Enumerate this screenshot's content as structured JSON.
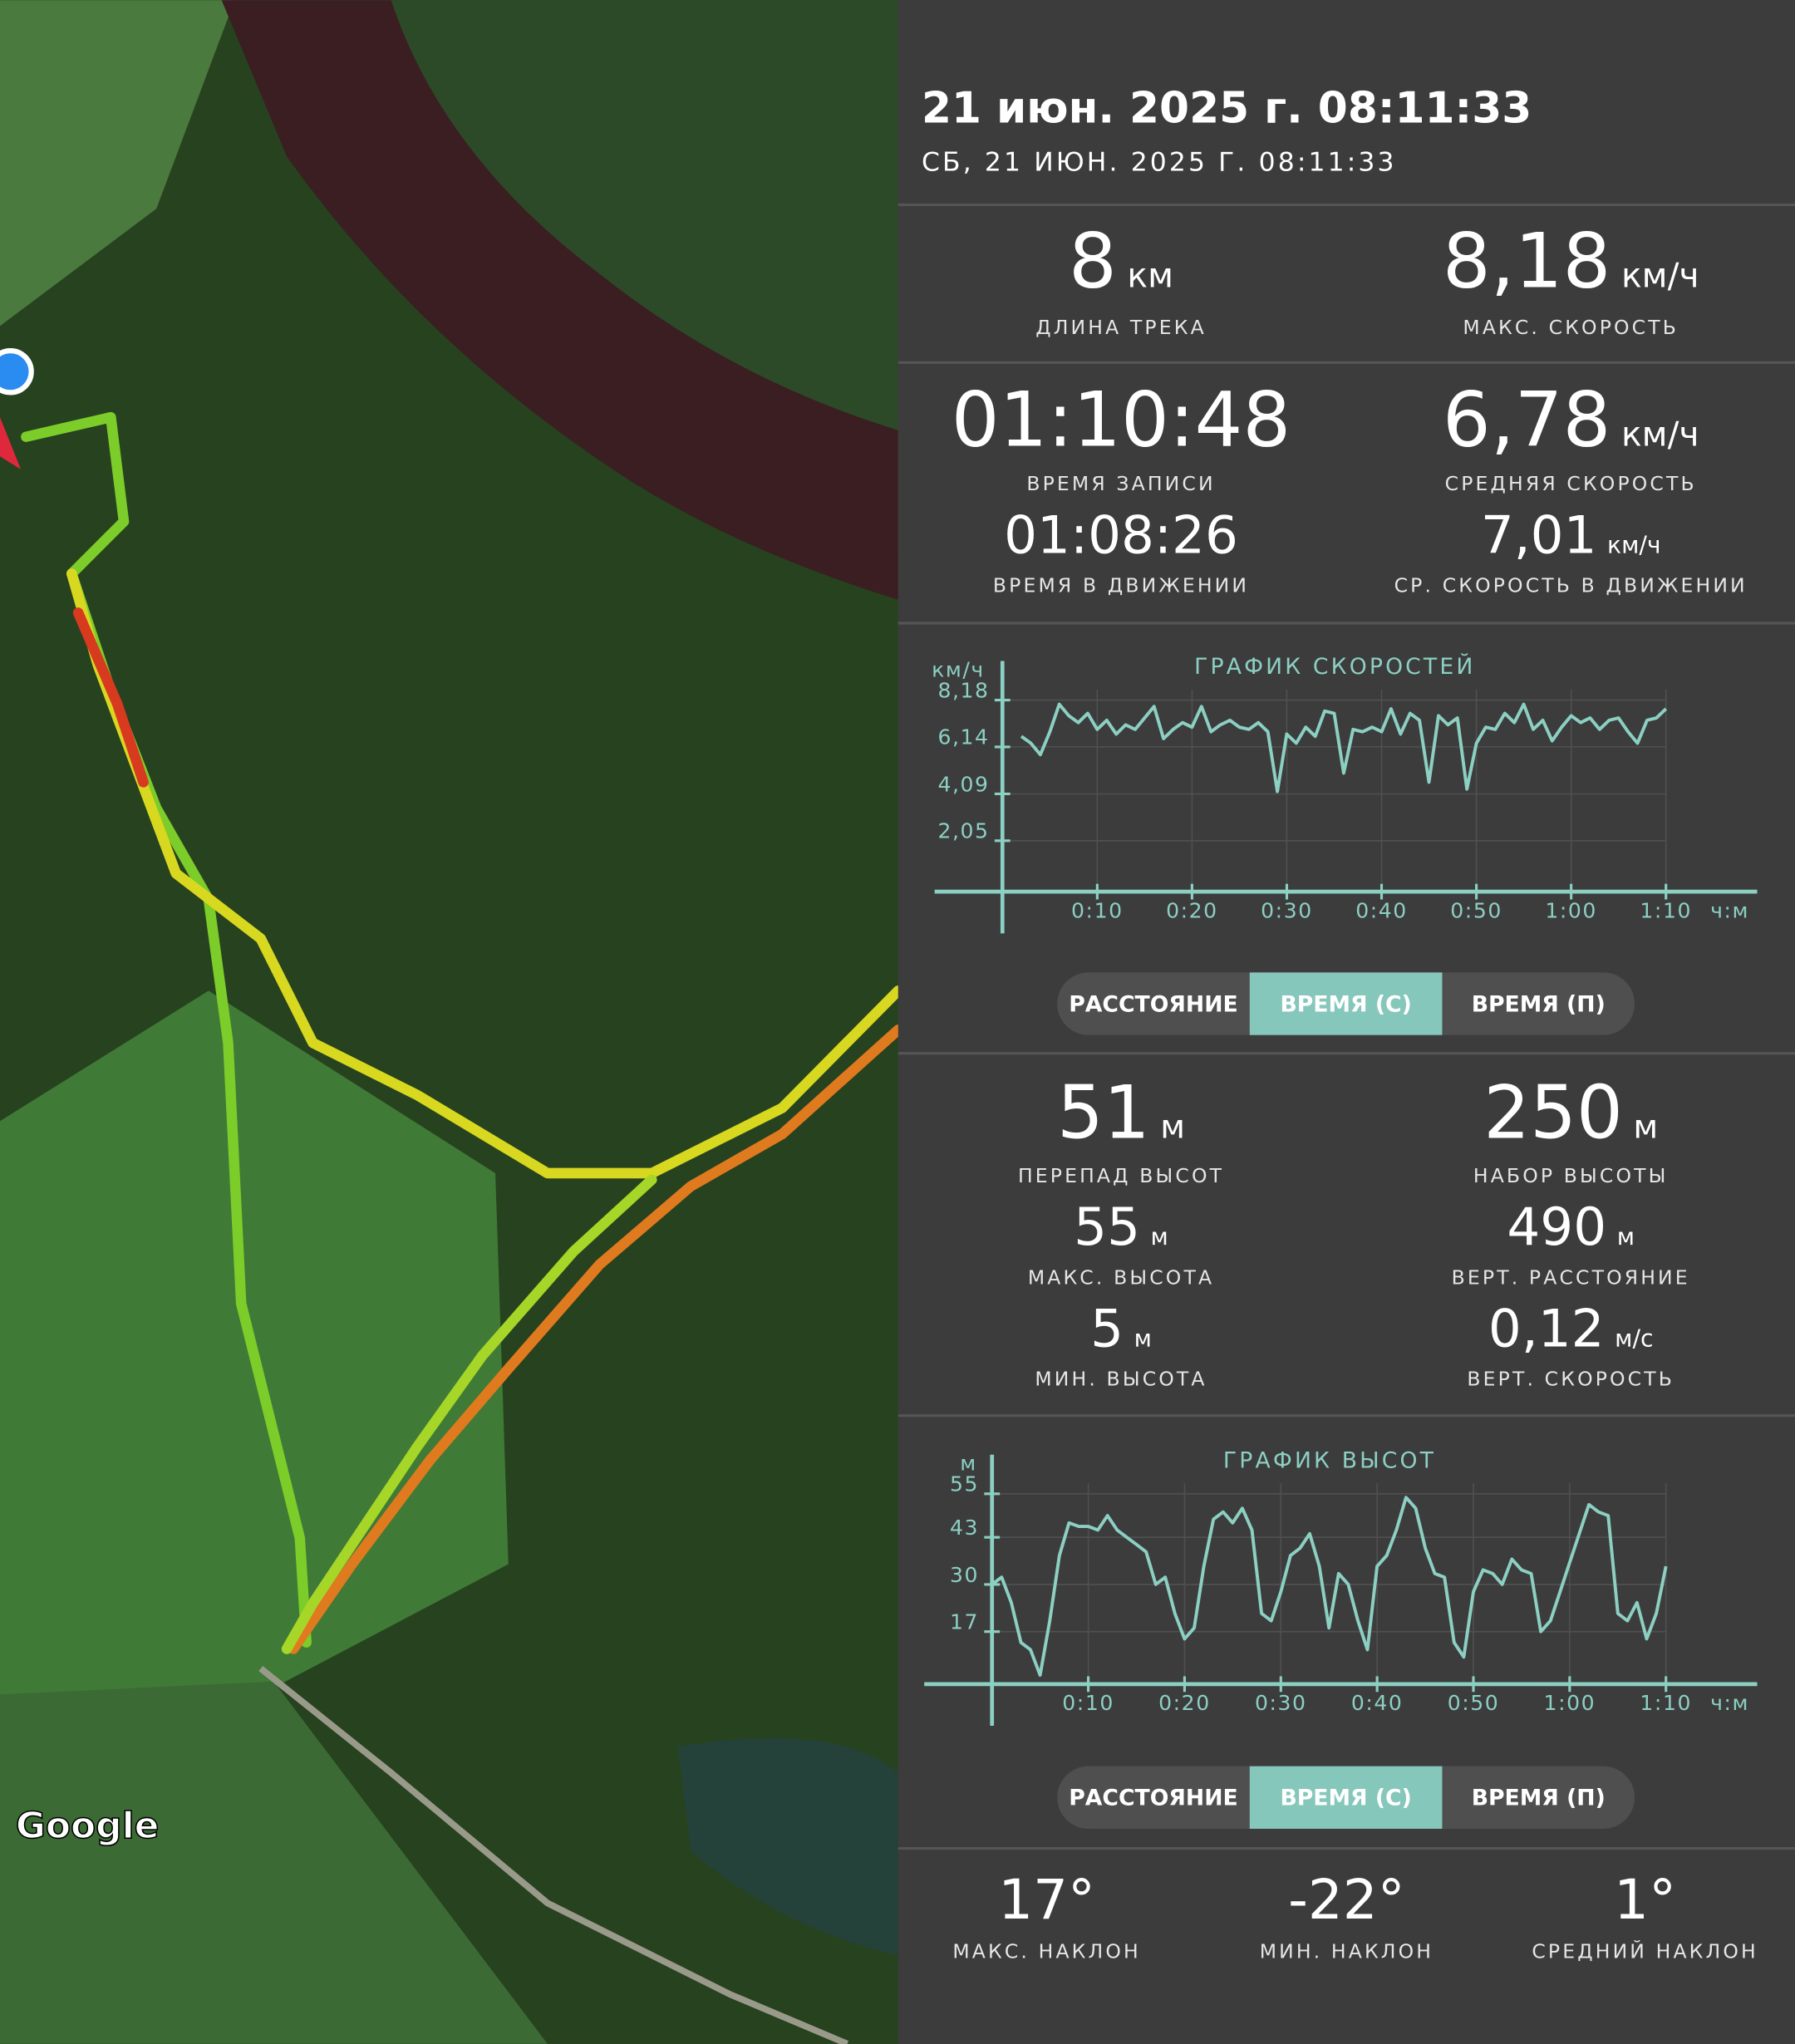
{
  "map": {
    "attribution": "Google"
  },
  "header": {
    "title": "21 июн. 2025 г. 08:11:33",
    "subtitle": "СБ, 21 ИЮН. 2025 Г. 08:11:33"
  },
  "track_stats": [
    {
      "value": "8",
      "unit": "км",
      "label": "ДЛИНА ТРЕКА"
    },
    {
      "value": "8,18",
      "unit": "км/ч",
      "label": "МАКС. СКОРОСТЬ"
    },
    {
      "value": "01:10:48",
      "label": "ВРЕМЯ ЗАПИСИ"
    },
    {
      "value": "6,78",
      "unit": "км/ч",
      "label": "СРЕДНЯЯ СКОРОСТЬ"
    },
    {
      "value": "01:08:26",
      "label": "ВРЕМЯ В ДВИЖЕНИИ"
    },
    {
      "value": "7,01",
      "unit": "км/ч",
      "label": "СР. СКОРОСТЬ В ДВИЖЕНИИ"
    }
  ],
  "elevation_stats": [
    {
      "value": "51",
      "unit": "м",
      "label": "ПЕРЕПАД ВЫСОТ"
    },
    {
      "value": "250",
      "unit": "м",
      "label": "НАБОР ВЫСОТЫ"
    },
    {
      "value": "55",
      "unit": "м",
      "label": "МАКС. ВЫСОТА"
    },
    {
      "value": "490",
      "unit": "м",
      "label": "ВЕРТ. РАССТОЯНИЕ"
    },
    {
      "value": "5",
      "unit": "м",
      "label": "МИН. ВЫСОТА"
    },
    {
      "value": "0,12",
      "unit": "м/с",
      "label": "ВЕРТ. СКОРОСТЬ"
    }
  ],
  "slope_stats": [
    {
      "value": "17°",
      "label": "МАКС. НАКЛОН"
    },
    {
      "value": "-22°",
      "label": "МИН. НАКЛОН"
    },
    {
      "value": "1°",
      "label": "СРЕДНИЙ НАКЛОН"
    }
  ],
  "speed_toggle": {
    "options": [
      "РАССТОЯНИЕ",
      "ВРЕМЯ (С)",
      "ВРЕМЯ (П)"
    ],
    "active": 1
  },
  "elevation_toggle": {
    "options": [
      "РАССТОЯНИЕ",
      "ВРЕМЯ (С)",
      "ВРЕМЯ (П)"
    ],
    "active": 1
  },
  "chart_data": [
    {
      "type": "line",
      "title": "ГРАФИК СКОРОСТЕЙ",
      "y_label": "км/ч",
      "x_label": "ч:м",
      "color": "#8ccfc3",
      "x": [
        2,
        3,
        4,
        5,
        6,
        7,
        8,
        9,
        10,
        11,
        12,
        13,
        14,
        15,
        16,
        17,
        18,
        19,
        20,
        21,
        22,
        23,
        24,
        25,
        26,
        27,
        28,
        29,
        30,
        31,
        32,
        33,
        34,
        35,
        36,
        37,
        38,
        39,
        40,
        41,
        42,
        43,
        44,
        45,
        46,
        47,
        48,
        49,
        50,
        51,
        52,
        53,
        54,
        55,
        56,
        57,
        58,
        59,
        60,
        61,
        62,
        63,
        64,
        65,
        66,
        67,
        68,
        69,
        70
      ],
      "values": [
        6.6,
        6.3,
        5.8,
        6.8,
        8.0,
        7.5,
        7.2,
        7.6,
        6.9,
        7.3,
        6.7,
        7.1,
        6.9,
        7.4,
        7.9,
        6.5,
        6.9,
        7.2,
        7.0,
        7.9,
        6.8,
        7.1,
        7.3,
        7.0,
        6.9,
        7.2,
        6.8,
        4.2,
        6.7,
        6.3,
        7.0,
        6.6,
        7.7,
        7.6,
        5.0,
        6.9,
        6.8,
        7.0,
        6.8,
        7.8,
        6.7,
        7.6,
        7.3,
        4.6,
        7.5,
        7.1,
        7.4,
        4.3,
        6.3,
        7.0,
        6.9,
        7.6,
        7.2,
        8.0,
        6.9,
        7.3,
        6.4,
        7.0,
        7.5,
        7.2,
        7.4,
        6.9,
        7.3,
        7.4,
        6.8,
        6.3,
        7.3,
        7.4,
        7.8
      ],
      "xlim": [
        0,
        70
      ],
      "ylim": [
        0,
        8.18
      ],
      "xticks": [
        {
          "value": 10,
          "label": "0:10"
        },
        {
          "value": 20,
          "label": "0:20"
        },
        {
          "value": 30,
          "label": "0:30"
        },
        {
          "value": 40,
          "label": "0:40"
        },
        {
          "value": 50,
          "label": "0:50"
        },
        {
          "value": 60,
          "label": "1:00"
        },
        {
          "value": 70,
          "label": "1:10"
        }
      ],
      "yticks": [
        {
          "value": 2.05,
          "label": "2,05"
        },
        {
          "value": 4.09,
          "label": "4,09"
        },
        {
          "value": 6.14,
          "label": "6,14"
        },
        {
          "value": 8.18,
          "label": "8,18"
        }
      ]
    },
    {
      "type": "line",
      "title": "ГРАФИК ВЫСОТ",
      "y_label": "м",
      "x_label": "ч:м",
      "color": "#8ccfc3",
      "x": [
        0,
        1,
        2,
        3,
        4,
        5,
        6,
        7,
        8,
        9,
        10,
        11,
        12,
        13,
        14,
        15,
        16,
        17,
        18,
        19,
        20,
        21,
        22,
        23,
        24,
        25,
        26,
        27,
        28,
        29,
        30,
        31,
        32,
        33,
        34,
        35,
        36,
        37,
        38,
        39,
        40,
        41,
        42,
        43,
        44,
        45,
        46,
        47,
        48,
        49,
        50,
        51,
        52,
        53,
        54,
        55,
        56,
        57,
        58,
        59,
        60,
        61,
        62,
        63,
        64,
        65,
        66,
        67,
        68,
        69,
        70
      ],
      "values": [
        30,
        32,
        25,
        14,
        12,
        5,
        20,
        38,
        47,
        46,
        46,
        45,
        49,
        45,
        43,
        41,
        39,
        30,
        32,
        22,
        15,
        18,
        35,
        48,
        50,
        47,
        51,
        45,
        22,
        20,
        28,
        38,
        40,
        44,
        35,
        18,
        33,
        30,
        20,
        12,
        35,
        38,
        45,
        54,
        51,
        40,
        33,
        32,
        14,
        10,
        28,
        34,
        33,
        30,
        37,
        34,
        33,
        17,
        20,
        28,
        36,
        44,
        52,
        50,
        49,
        22,
        20,
        25,
        15,
        22,
        35
      ],
      "xlim": [
        0,
        70
      ],
      "ylim": [
        0,
        55
      ],
      "xticks": [
        {
          "value": 10,
          "label": "0:10"
        },
        {
          "value": 20,
          "label": "0:20"
        },
        {
          "value": 30,
          "label": "0:30"
        },
        {
          "value": 40,
          "label": "0:40"
        },
        {
          "value": 50,
          "label": "0:50"
        },
        {
          "value": 60,
          "label": "1:00"
        },
        {
          "value": 70,
          "label": "1:10"
        }
      ],
      "yticks": [
        17,
        30,
        43,
        55
      ]
    }
  ]
}
